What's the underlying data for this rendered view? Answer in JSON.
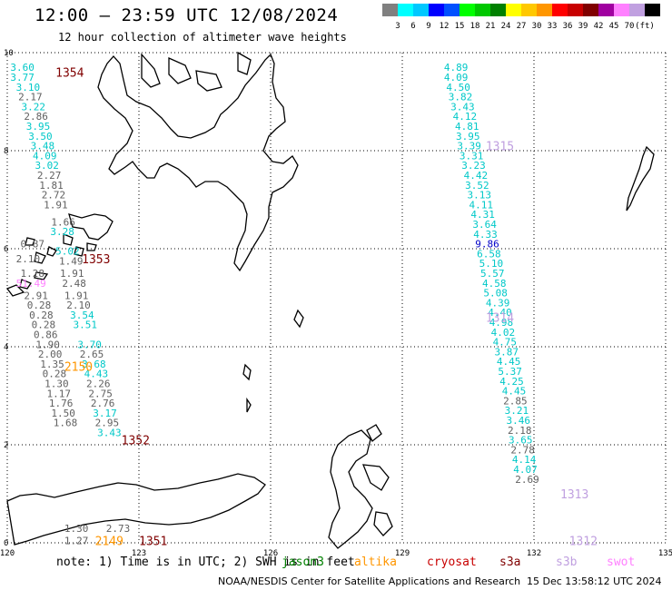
{
  "header": {
    "title": "12:00 – 23:59 UTC 12/08/2024",
    "subtitle": "12 hour collection of altimeter wave heights"
  },
  "colorbar": {
    "unit": "(ft)",
    "ticks": [
      "3",
      "6",
      "9",
      "12",
      "15",
      "18",
      "21",
      "24",
      "27",
      "30",
      "33",
      "36",
      "39",
      "42",
      "45",
      "70"
    ],
    "colors": [
      "#808080",
      "#00ffff",
      "#00c8ff",
      "#0000ff",
      "#0050ff",
      "#00ff00",
      "#00c800",
      "#008000",
      "#ffff00",
      "#ffc800",
      "#ff9600",
      "#ff0000",
      "#c80000",
      "#800000",
      "#a000a0",
      "#ff80ff",
      "#c0a0e0",
      "#000000"
    ]
  },
  "legend": {
    "note": "note: 1) Time is in UTC; 2) SWH is in feet",
    "satellites": [
      {
        "name": "jason3",
        "color": "#008000"
      },
      {
        "name": "altika",
        "color": "#ff9600"
      },
      {
        "name": "cryosat",
        "color": "#c80000"
      },
      {
        "name": "s3a",
        "color": "#800000"
      },
      {
        "name": "s3b",
        "color": "#c0a0e0"
      },
      {
        "name": "swot",
        "color": "#ff80ff"
      }
    ]
  },
  "footer": {
    "credit": "NOAA/NESDIS Center for Satellite Applications and Research",
    "date": "15 Dec 13:58:12 UTC 2024"
  },
  "chart_data": {
    "type": "scatter",
    "x_ticks": [
      "120",
      "123",
      "126",
      "129",
      "132",
      "135"
    ],
    "y_ticks": [
      "0",
      "2",
      "4",
      "6",
      "8",
      "10"
    ],
    "xlim": [
      120,
      135
    ],
    "ylim": [
      0,
      10
    ],
    "grid": true,
    "track_labels": [
      {
        "text": "1354",
        "lon": 121.1,
        "lat": 9.6,
        "color": "#800000"
      },
      {
        "text": "1353",
        "lon": 121.7,
        "lat": 5.8,
        "color": "#800000"
      },
      {
        "text": "1352",
        "lon": 122.6,
        "lat": 2.1,
        "color": "#800000"
      },
      {
        "text": "1351",
        "lon": 123.0,
        "lat": 0.05,
        "color": "#800000"
      },
      {
        "text": "1315",
        "lon": 130.9,
        "lat": 8.1,
        "color": "#c0a0e0"
      },
      {
        "text": "1314",
        "lon": 130.9,
        "lat": 4.6,
        "color": "#c0a0e0"
      },
      {
        "text": "1313",
        "lon": 132.6,
        "lat": 1.0,
        "color": "#c0a0e0"
      },
      {
        "text": "1312",
        "lon": 132.8,
        "lat": 0.05,
        "color": "#c0a0e0"
      },
      {
        "text": "2150",
        "lon": 121.3,
        "lat": 3.6,
        "color": "#ff9600"
      },
      {
        "text": "2149",
        "lon": 122.0,
        "lat": 0.05,
        "color": "#ff9600"
      }
    ],
    "observations": [
      {
        "v": "3.60",
        "lon": 120.07,
        "lat": 9.7,
        "c": "#00c8c8"
      },
      {
        "v": "3.77",
        "lon": 120.07,
        "lat": 9.5,
        "c": "#00c8c8"
      },
      {
        "v": "3.10",
        "lon": 120.2,
        "lat": 9.3,
        "c": "#00c8c8"
      },
      {
        "v": "2.17",
        "lon": 120.25,
        "lat": 9.1,
        "c": "#606060"
      },
      {
        "v": "3.22",
        "lon": 120.32,
        "lat": 8.9,
        "c": "#00c8c8"
      },
      {
        "v": "2.86",
        "lon": 120.38,
        "lat": 8.7,
        "c": "#606060"
      },
      {
        "v": "3.95",
        "lon": 120.43,
        "lat": 8.5,
        "c": "#00c8c8"
      },
      {
        "v": "3.50",
        "lon": 120.48,
        "lat": 8.3,
        "c": "#00c8c8"
      },
      {
        "v": "3.48",
        "lon": 120.53,
        "lat": 8.1,
        "c": "#00c8c8"
      },
      {
        "v": "4.09",
        "lon": 120.58,
        "lat": 7.9,
        "c": "#00c8c8"
      },
      {
        "v": "3.02",
        "lon": 120.63,
        "lat": 7.7,
        "c": "#00c8c8"
      },
      {
        "v": "2.27",
        "lon": 120.68,
        "lat": 7.5,
        "c": "#606060"
      },
      {
        "v": "1.81",
        "lon": 120.73,
        "lat": 7.3,
        "c": "#606060"
      },
      {
        "v": "2.72",
        "lon": 120.78,
        "lat": 7.1,
        "c": "#606060"
      },
      {
        "v": "1.91",
        "lon": 120.83,
        "lat": 6.9,
        "c": "#606060"
      },
      {
        "v": "1.66",
        "lon": 121.0,
        "lat": 6.55,
        "c": "#606060"
      },
      {
        "v": "3.28",
        "lon": 120.98,
        "lat": 6.35,
        "c": "#00c8c8"
      },
      {
        "v": "0.87",
        "lon": 120.3,
        "lat": 6.1,
        "c": "#606060"
      },
      {
        "v": "2.10",
        "lon": 120.2,
        "lat": 5.8,
        "c": "#606060"
      },
      {
        "v": "5.02",
        "lon": 121.1,
        "lat": 5.95,
        "c": "#00c8c8"
      },
      {
        "v": "1.49",
        "lon": 121.18,
        "lat": 5.75,
        "c": "#606060"
      },
      {
        "v": "1.28",
        "lon": 120.3,
        "lat": 5.5,
        "c": "#606060"
      },
      {
        "v": "1.91",
        "lon": 121.2,
        "lat": 5.5,
        "c": "#606060"
      },
      {
        "v": "51.49",
        "lon": 120.2,
        "lat": 5.3,
        "c": "#ff80ff"
      },
      {
        "v": "2.48",
        "lon": 121.25,
        "lat": 5.3,
        "c": "#606060"
      },
      {
        "v": "2.91",
        "lon": 120.38,
        "lat": 5.05,
        "c": "#606060"
      },
      {
        "v": "1.91",
        "lon": 121.3,
        "lat": 5.05,
        "c": "#606060"
      },
      {
        "v": "0.28",
        "lon": 120.45,
        "lat": 4.85,
        "c": "#606060"
      },
      {
        "v": "2.10",
        "lon": 121.35,
        "lat": 4.85,
        "c": "#606060"
      },
      {
        "v": "0.28",
        "lon": 120.5,
        "lat": 4.65,
        "c": "#606060"
      },
      {
        "v": "3.54",
        "lon": 121.43,
        "lat": 4.65,
        "c": "#00c8c8"
      },
      {
        "v": "0.28",
        "lon": 120.55,
        "lat": 4.45,
        "c": "#606060"
      },
      {
        "v": "3.51",
        "lon": 121.5,
        "lat": 4.45,
        "c": "#00c8c8"
      },
      {
        "v": "0.86",
        "lon": 120.6,
        "lat": 4.25,
        "c": "#606060"
      },
      {
        "v": "1.90",
        "lon": 120.65,
        "lat": 4.05,
        "c": "#606060"
      },
      {
        "v": "3.70",
        "lon": 121.6,
        "lat": 4.05,
        "c": "#00c8c8"
      },
      {
        "v": "2.00",
        "lon": 120.7,
        "lat": 3.85,
        "c": "#606060"
      },
      {
        "v": "2.65",
        "lon": 121.65,
        "lat": 3.85,
        "c": "#606060"
      },
      {
        "v": "1.35",
        "lon": 120.75,
        "lat": 3.65,
        "c": "#606060"
      },
      {
        "v": "3.68",
        "lon": 121.7,
        "lat": 3.65,
        "c": "#00c8c8"
      },
      {
        "v": "0.28",
        "lon": 120.8,
        "lat": 3.45,
        "c": "#606060"
      },
      {
        "v": "4.43",
        "lon": 121.75,
        "lat": 3.45,
        "c": "#00c8c8"
      },
      {
        "v": "1.30",
        "lon": 120.85,
        "lat": 3.25,
        "c": "#606060"
      },
      {
        "v": "2.26",
        "lon": 121.8,
        "lat": 3.25,
        "c": "#606060"
      },
      {
        "v": "1.17",
        "lon": 120.9,
        "lat": 3.05,
        "c": "#606060"
      },
      {
        "v": "2.75",
        "lon": 121.85,
        "lat": 3.05,
        "c": "#606060"
      },
      {
        "v": "1.76",
        "lon": 120.95,
        "lat": 2.85,
        "c": "#606060"
      },
      {
        "v": "2.76",
        "lon": 121.9,
        "lat": 2.85,
        "c": "#606060"
      },
      {
        "v": "1.50",
        "lon": 121.0,
        "lat": 2.65,
        "c": "#606060"
      },
      {
        "v": "3.17",
        "lon": 121.95,
        "lat": 2.65,
        "c": "#00c8c8"
      },
      {
        "v": "1.68",
        "lon": 121.05,
        "lat": 2.45,
        "c": "#606060"
      },
      {
        "v": "2.95",
        "lon": 122.0,
        "lat": 2.45,
        "c": "#606060"
      },
      {
        "v": "3.43",
        "lon": 122.05,
        "lat": 2.25,
        "c": "#00c8c8"
      },
      {
        "v": "1.30",
        "lon": 121.3,
        "lat": 0.3,
        "c": "#606060"
      },
      {
        "v": "2.73",
        "lon": 122.25,
        "lat": 0.3,
        "c": "#606060"
      },
      {
        "v": "1.27",
        "lon": 121.3,
        "lat": 0.05,
        "c": "#606060"
      },
      {
        "v": "4.89",
        "lon": 129.95,
        "lat": 9.7,
        "c": "#00c8c8"
      },
      {
        "v": "4.09",
        "lon": 129.95,
        "lat": 9.5,
        "c": "#00c8c8"
      },
      {
        "v": "4.50",
        "lon": 130.0,
        "lat": 9.3,
        "c": "#00c8c8"
      },
      {
        "v": "3.82",
        "lon": 130.05,
        "lat": 9.1,
        "c": "#00c8c8"
      },
      {
        "v": "3.43",
        "lon": 130.1,
        "lat": 8.9,
        "c": "#00c8c8"
      },
      {
        "v": "4.12",
        "lon": 130.15,
        "lat": 8.7,
        "c": "#00c8c8"
      },
      {
        "v": "4.81",
        "lon": 130.2,
        "lat": 8.5,
        "c": "#00c8c8"
      },
      {
        "v": "3.95",
        "lon": 130.22,
        "lat": 8.3,
        "c": "#00c8c8"
      },
      {
        "v": "3.39",
        "lon": 130.25,
        "lat": 8.1,
        "c": "#00c8c8"
      },
      {
        "v": "3.31",
        "lon": 130.3,
        "lat": 7.9,
        "c": "#00c8c8"
      },
      {
        "v": "3.23",
        "lon": 130.35,
        "lat": 7.7,
        "c": "#00c8c8"
      },
      {
        "v": "4.42",
        "lon": 130.4,
        "lat": 7.5,
        "c": "#00c8c8"
      },
      {
        "v": "3.52",
        "lon": 130.43,
        "lat": 7.3,
        "c": "#00c8c8"
      },
      {
        "v": "3.13",
        "lon": 130.48,
        "lat": 7.1,
        "c": "#00c8c8"
      },
      {
        "v": "4.11",
        "lon": 130.52,
        "lat": 6.9,
        "c": "#00c8c8"
      },
      {
        "v": "4.31",
        "lon": 130.56,
        "lat": 6.7,
        "c": "#00c8c8"
      },
      {
        "v": "3.64",
        "lon": 130.6,
        "lat": 6.5,
        "c": "#00c8c8"
      },
      {
        "v": "4.33",
        "lon": 130.62,
        "lat": 6.3,
        "c": "#00c8c8"
      },
      {
        "v": "9.86",
        "lon": 130.66,
        "lat": 6.1,
        "c": "#0000c8"
      },
      {
        "v": "6.58",
        "lon": 130.7,
        "lat": 5.9,
        "c": "#00c8c8"
      },
      {
        "v": "5.10",
        "lon": 130.75,
        "lat": 5.7,
        "c": "#00c8c8"
      },
      {
        "v": "5.57",
        "lon": 130.78,
        "lat": 5.5,
        "c": "#00c8c8"
      },
      {
        "v": "4.58",
        "lon": 130.82,
        "lat": 5.3,
        "c": "#00c8c8"
      },
      {
        "v": "5.08",
        "lon": 130.85,
        "lat": 5.1,
        "c": "#00c8c8"
      },
      {
        "v": "4.39",
        "lon": 130.9,
        "lat": 4.9,
        "c": "#00c8c8"
      },
      {
        "v": "4.40",
        "lon": 130.95,
        "lat": 4.7,
        "c": "#00c8c8"
      },
      {
        "v": "4.98",
        "lon": 130.98,
        "lat": 4.5,
        "c": "#00c8c8"
      },
      {
        "v": "4.02",
        "lon": 131.02,
        "lat": 4.3,
        "c": "#00c8c8"
      },
      {
        "v": "4.75",
        "lon": 131.06,
        "lat": 4.1,
        "c": "#00c8c8"
      },
      {
        "v": "3.87",
        "lon": 131.1,
        "lat": 3.9,
        "c": "#00c8c8"
      },
      {
        "v": "4.45",
        "lon": 131.15,
        "lat": 3.7,
        "c": "#00c8c8"
      },
      {
        "v": "5.37",
        "lon": 131.18,
        "lat": 3.5,
        "c": "#00c8c8"
      },
      {
        "v": "4.25",
        "lon": 131.22,
        "lat": 3.3,
        "c": "#00c8c8"
      },
      {
        "v": "4.45",
        "lon": 131.27,
        "lat": 3.1,
        "c": "#00c8c8"
      },
      {
        "v": "2.85",
        "lon": 131.3,
        "lat": 2.9,
        "c": "#606060"
      },
      {
        "v": "3.21",
        "lon": 131.33,
        "lat": 2.7,
        "c": "#00c8c8"
      },
      {
        "v": "3.46",
        "lon": 131.37,
        "lat": 2.5,
        "c": "#00c8c8"
      },
      {
        "v": "2.18",
        "lon": 131.4,
        "lat": 2.3,
        "c": "#606060"
      },
      {
        "v": "3.65",
        "lon": 131.42,
        "lat": 2.1,
        "c": "#00c8c8"
      },
      {
        "v": "2.78",
        "lon": 131.47,
        "lat": 1.9,
        "c": "#606060"
      },
      {
        "v": "4.14",
        "lon": 131.5,
        "lat": 1.7,
        "c": "#00c8c8"
      },
      {
        "v": "4.07",
        "lon": 131.53,
        "lat": 1.5,
        "c": "#00c8c8"
      },
      {
        "v": "2.69",
        "lon": 131.57,
        "lat": 1.3,
        "c": "#606060"
      }
    ]
  }
}
